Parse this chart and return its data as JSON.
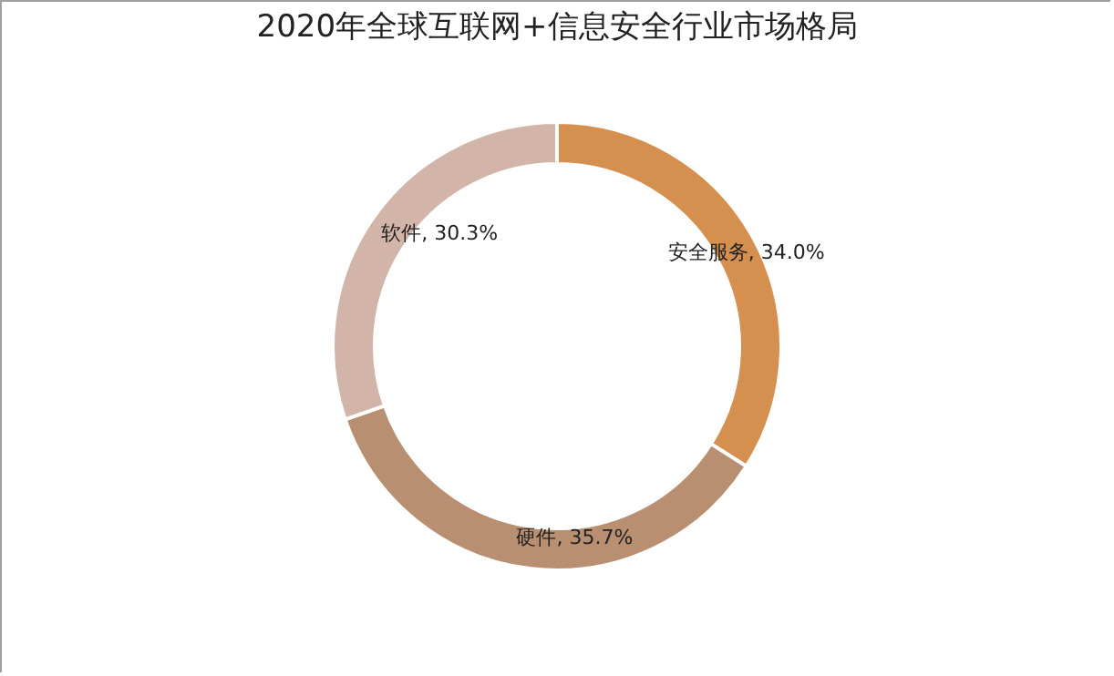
{
  "chart_data": {
    "type": "donut",
    "title": "2020年全球互联网+信息安全行业市场格局",
    "categories": [
      "安全服务",
      "硬件",
      "软件"
    ],
    "values": [
      34.0,
      35.7,
      30.3
    ],
    "colors": [
      "#d58f4f",
      "#b98f72",
      "#d2b5a8"
    ],
    "value_labels": [
      ", 34.0%",
      ", 35.7%",
      ", 30.3%"
    ],
    "legend": false
  }
}
